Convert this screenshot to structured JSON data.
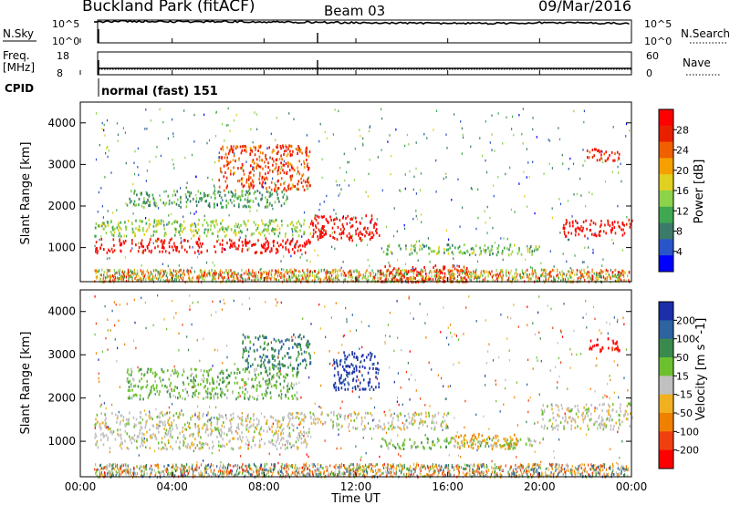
{
  "header": {
    "title": "Buckland Park (fitACF)",
    "beam": "Beam 03",
    "date": "09/Mar/2016"
  },
  "noise_panel": {
    "left_label": "N.Sky",
    "right_label": "N.Search",
    "left_ticks": [
      "10^5",
      "10^0"
    ],
    "right_ticks": [
      "10^5",
      "10^0"
    ]
  },
  "freq_panel": {
    "left_label_1": "Freq.",
    "left_label_2": "[MHz]",
    "left_ticks": [
      "18",
      "8"
    ],
    "right_label": "Nave",
    "right_ticks": [
      "60",
      "0"
    ]
  },
  "cpid": {
    "label": "CPID",
    "mode": "normal (fast) 151"
  },
  "x_axis": {
    "label": "Time UT",
    "ticks": [
      "00:00",
      "04:00",
      "08:00",
      "12:00",
      "16:00",
      "20:00",
      "00:00"
    ]
  },
  "panels": [
    {
      "ylabel": "Slant Range [km]",
      "yticks": [
        "1000",
        "2000",
        "3000",
        "4000"
      ],
      "colorbar_label": "Power [dB]",
      "colorbar_ticks": [
        "4",
        "8",
        "12",
        "16",
        "20",
        "24",
        "28"
      ]
    },
    {
      "ylabel": "Slant Range [km]",
      "yticks": [
        "1000",
        "2000",
        "3000",
        "4000"
      ],
      "colorbar_label": "Velocity [m s^-1]",
      "colorbar_ticks": [
        "200",
        "100",
        "50",
        "15",
        "-15",
        "-50",
        "-100",
        "-200"
      ]
    }
  ],
  "colors": {
    "power_scale": [
      "#0000ff",
      "#2a55c8",
      "#3c7a6a",
      "#3fa850",
      "#8cd24a",
      "#e0d020",
      "#f5a000",
      "#f06000",
      "#e82000",
      "#ff0000"
    ],
    "velocity_scale": [
      "#1c2ea8",
      "#2c63a0",
      "#3a8a4e",
      "#6cc030",
      "#c0c0c0",
      "#f0b020",
      "#f08000",
      "#f04010",
      "#ff0000"
    ]
  },
  "chart_data": [
    {
      "type": "line",
      "title": "N.Sky / N.Search",
      "x": [
        "00:00",
        "02:00",
        "04:00",
        "06:00",
        "08:00",
        "10:00",
        "12:00",
        "14:00",
        "16:00",
        "18:00",
        "20:00",
        "22:00",
        "24:00"
      ],
      "series": [
        {
          "name": "N.Sky",
          "values": [
            100000,
            150000,
            120000,
            110000,
            90000,
            80000,
            60000,
            50000,
            45000,
            40000,
            60000,
            50000,
            40000
          ]
        }
      ],
      "ylim": [
        1,
        100000
      ],
      "scale": "log"
    },
    {
      "type": "heatmap",
      "title": "Power [dB]",
      "xlabel": "Time UT",
      "ylabel": "Slant Range [km]",
      "xlim": [
        0,
        24
      ],
      "ylim": [
        180,
        4500
      ],
      "zlim": [
        0,
        30
      ],
      "grid": false,
      "bands": [
        {
          "t_start": 0.6,
          "t_end": 10,
          "range_low": 900,
          "range_high": 1250,
          "power": 28
        },
        {
          "t_start": 0.6,
          "t_end": 10,
          "range_low": 1300,
          "range_high": 1700,
          "power": 14
        },
        {
          "t_start": 2,
          "t_end": 9,
          "range_low": 2000,
          "range_high": 2400,
          "power": 10
        },
        {
          "t_start": 6,
          "t_end": 10,
          "range_low": 2400,
          "range_high": 3500,
          "power": 24
        },
        {
          "t_start": 10,
          "t_end": 13,
          "range_low": 1200,
          "range_high": 1800,
          "power": 28
        },
        {
          "t_start": 13,
          "t_end": 20,
          "range_low": 850,
          "range_high": 1100,
          "power": 12
        },
        {
          "t_start": 13,
          "t_end": 17,
          "range_low": 200,
          "range_high": 600,
          "power": 27
        },
        {
          "t_start": 21,
          "t_end": 24,
          "range_low": 1300,
          "range_high": 1700,
          "power": 28
        },
        {
          "t_start": 22,
          "t_end": 23.5,
          "range_low": 3100,
          "range_high": 3400,
          "power": 26
        }
      ]
    },
    {
      "type": "heatmap",
      "title": "Velocity [m s^-1]",
      "xlabel": "Time UT",
      "ylabel": "Slant Range [km]",
      "xlim": [
        0,
        24
      ],
      "ylim": [
        180,
        4500
      ],
      "zlim": [
        -250,
        250
      ],
      "grid": false,
      "bands": [
        {
          "t_start": 0.6,
          "t_end": 10,
          "range_low": 850,
          "range_high": 1700,
          "velocity": 0
        },
        {
          "t_start": 2,
          "t_end": 9.5,
          "range_low": 2000,
          "range_high": 2700,
          "velocity": 60
        },
        {
          "t_start": 7,
          "t_end": 10,
          "range_low": 2700,
          "range_high": 3500,
          "velocity": 120
        },
        {
          "t_start": 10,
          "t_end": 16,
          "range_low": 1300,
          "range_high": 1700,
          "velocity": 0
        },
        {
          "t_start": 11,
          "t_end": 13,
          "range_low": 2200,
          "range_high": 3100,
          "velocity": 220
        },
        {
          "t_start": 13,
          "t_end": 20,
          "range_low": 850,
          "range_high": 1100,
          "velocity": 50
        },
        {
          "t_start": 16,
          "t_end": 19,
          "range_low": 850,
          "range_high": 1200,
          "velocity": -70
        },
        {
          "t_start": 20,
          "t_end": 24,
          "range_low": 1300,
          "range_high": 1900,
          "velocity": 0
        },
        {
          "t_start": 22,
          "t_end": 23.5,
          "range_low": 3100,
          "range_high": 3400,
          "velocity": -220
        }
      ]
    }
  ]
}
